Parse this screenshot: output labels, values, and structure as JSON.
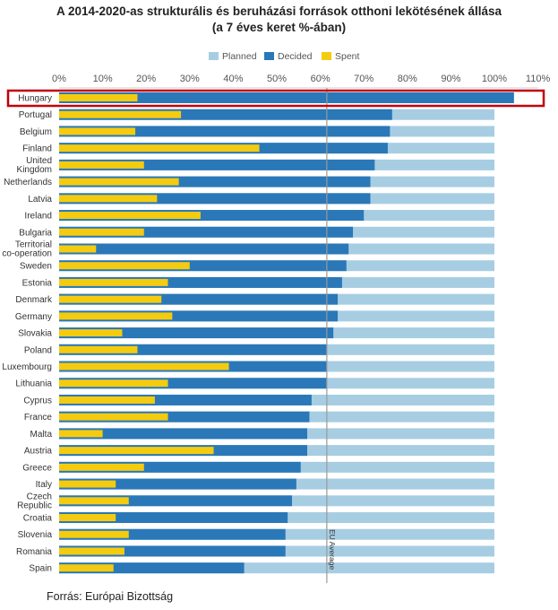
{
  "chart_data": {
    "type": "bar",
    "orientation": "horizontal",
    "title": "A 2014-2020-as strukturális és beruházási források otthoni lekötésének állása",
    "subtitle": "(a 7 éves keret %-ában)",
    "source": "Forrás: Európai Bizottság",
    "xlim": [
      0,
      110
    ],
    "x_ticks": [
      "0%",
      "10%",
      "20%",
      "30%",
      "40%",
      "50%",
      "60%",
      "70%",
      "80%",
      "90%",
      "100%",
      "110%"
    ],
    "legend": [
      "Planned",
      "Decided",
      "Spent"
    ],
    "legend_position": "top",
    "colors": {
      "planned": "#a7cde3",
      "decided": "#2a78b8",
      "spent": "#f5cb0f",
      "highlight": "#c0000b",
      "average_line": "#999999"
    },
    "highlighted_category": "Hungary",
    "eu_average": 61.5,
    "eu_average_label": "EU Average",
    "categories": [
      "Hungary",
      "Portugal",
      "Belgium",
      "Finland",
      "United Kingdom",
      "Netherlands",
      "Latvia",
      "Ireland",
      "Bulgaria",
      "Territorial co-operation",
      "Sweden",
      "Estonia",
      "Denmark",
      "Germany",
      "Slovakia",
      "Poland",
      "Luxembourg",
      "Lithuania",
      "Cyprus",
      "France",
      "Malta",
      "Austria",
      "Greece",
      "Italy",
      "Czech Republic",
      "Croatia",
      "Slovenia",
      "Romania",
      "Spain"
    ],
    "series": [
      {
        "name": "Planned",
        "values": [
          100,
          100,
          100,
          100,
          100,
          100,
          100,
          100,
          100,
          100,
          100,
          100,
          100,
          100,
          100,
          100,
          100,
          100,
          100,
          100,
          100,
          100,
          100,
          100,
          100,
          100,
          100,
          100,
          100
        ]
      },
      {
        "name": "Decided",
        "values": [
          104.5,
          76.5,
          76,
          75.5,
          72.5,
          71.5,
          71.5,
          70,
          67.5,
          66.5,
          66,
          65,
          64,
          64,
          63,
          61.5,
          61.5,
          61.5,
          58,
          57.5,
          57,
          57,
          55.5,
          54.5,
          53.5,
          52.5,
          52,
          52,
          42.5
        ]
      },
      {
        "name": "Spent",
        "values": [
          18,
          28,
          17.5,
          46,
          19.5,
          27.5,
          22.5,
          32.5,
          19.5,
          8.5,
          30,
          25,
          23.5,
          26,
          14.5,
          18,
          39,
          25,
          22,
          25,
          10,
          35.5,
          19.5,
          13,
          16,
          13,
          16,
          15,
          12.5
        ]
      }
    ]
  }
}
